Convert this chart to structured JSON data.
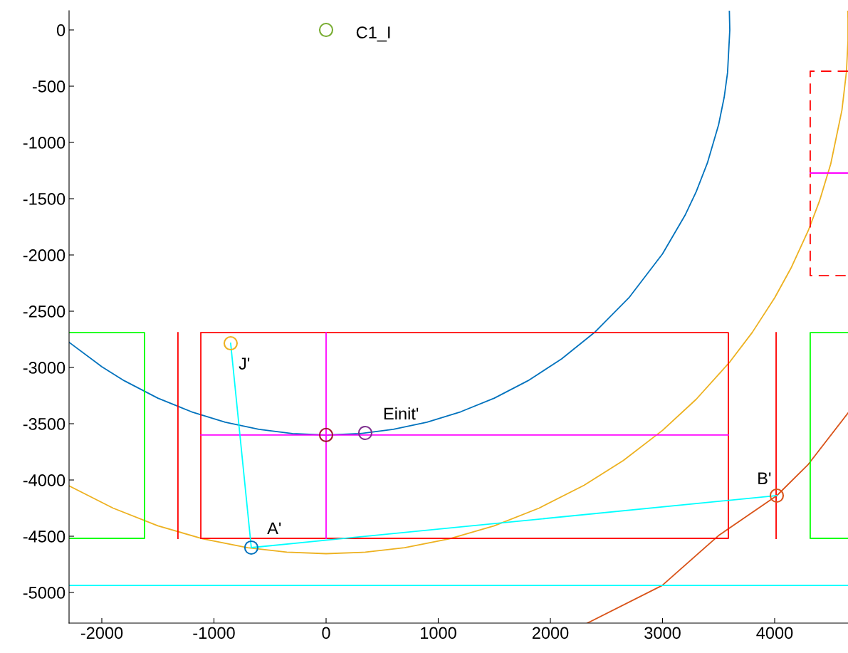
{
  "chart_data": {
    "type": "line",
    "xlim": [
      -2292,
      4654
    ],
    "ylim": [
      -5272,
      171
    ],
    "xticks": [
      -2000,
      -1000,
      0,
      1000,
      2000,
      3000,
      4000
    ],
    "yticks": [
      0,
      -500,
      -1000,
      -1500,
      -2000,
      -2500,
      -3000,
      -3500,
      -4000,
      -4500,
      -5000
    ],
    "grid": false,
    "legend": false,
    "series": [
      {
        "color": "#0072bd",
        "line_style": "solid",
        "x": [
          -2292,
          -2000,
          -1800,
          -1500,
          -1200,
          -900,
          -600,
          -300,
          0,
          300,
          600,
          900,
          1200,
          1500,
          1800,
          2100,
          2400,
          2700,
          3000,
          3200,
          3300,
          3400,
          3500,
          3550,
          3580,
          3600,
          3596
        ],
        "values": [
          -2776,
          -2993,
          -3118,
          -3273,
          -3394,
          -3486,
          -3550,
          -3588,
          -3600,
          -3588,
          -3550,
          -3486,
          -3394,
          -3273,
          -3118,
          -2924,
          -2683,
          -2381,
          -1990,
          -1649,
          -1439,
          -1183,
          -843,
          -598,
          -379,
          0,
          170
        ]
      },
      {
        "color": "#edb120",
        "line_style": "solid",
        "x": [
          -2292,
          -1900,
          -1500,
          -1100,
          -700,
          -350,
          0,
          350,
          700,
          1100,
          1500,
          1900,
          2300,
          2650,
          3000,
          3300,
          3600,
          3800,
          4000,
          4150,
          4300,
          4400,
          4500,
          4600,
          4640,
          4654,
          4654,
          4652
        ],
        "values": [
          -4052,
          -4250,
          -4407,
          -4523,
          -4602,
          -4642,
          -4655,
          -4642,
          -4602,
          -4523,
          -4407,
          -4250,
          -4047,
          -3827,
          -3559,
          -3283,
          -2951,
          -2689,
          -2381,
          -2109,
          -1783,
          -1520,
          -1191,
          -713,
          -373,
          -96,
          96,
          171
        ]
      },
      {
        "color": "#d95319",
        "line_style": "solid",
        "x": [
          2330,
          2997,
          3500,
          4019,
          4300,
          4654
        ],
        "values": [
          -5272,
          -4937,
          -4494,
          -4139,
          -3861,
          -3405
        ]
      },
      {
        "color": "#ff0000",
        "line_style": "solid",
        "x": [
          -1117,
          3587,
          3587,
          -1117,
          null,
          -1117,
          -1117,
          null,
          -1321,
          -1321,
          null,
          4013,
          4013
        ],
        "values": [
          -2690,
          -2690,
          -4519,
          -4519,
          null,
          -4519,
          -2690,
          null,
          -2690,
          -4519,
          null,
          -2690,
          -4519
        ]
      },
      {
        "color": "#ff00ff",
        "line_style": "solid",
        "x": [
          -1117,
          3587
        ],
        "values": [
          -3600,
          -3600
        ]
      },
      {
        "color": "#ff00ff",
        "line_style": "solid",
        "x": [
          0,
          0
        ],
        "values": [
          -2690,
          -4519
        ]
      },
      {
        "color": "#00ff00",
        "line_style": "solid",
        "x": [
          -2292,
          -1619,
          -1619,
          -2292
        ],
        "values": [
          -2690,
          -2690,
          -4519,
          -4519
        ]
      },
      {
        "color": "#00ff00",
        "line_style": "solid",
        "x": [
          4654,
          4317,
          4317,
          4654
        ],
        "values": [
          -2690,
          -2690,
          -4519,
          -4519
        ]
      },
      {
        "color": "#ff0000",
        "line_style": "dashed",
        "x": [
          4654,
          4317,
          4317,
          4654
        ],
        "values": [
          -367,
          -367,
          -2184,
          -2184
        ]
      },
      {
        "color": "#ff00ff",
        "line_style": "solid",
        "x": [
          4317,
          4654
        ],
        "values": [
          -1272,
          -1272
        ]
      },
      {
        "color": "#00ffff",
        "line_style": "solid",
        "x": [
          -2292,
          4654
        ],
        "values": [
          -4937,
          -4937
        ]
      },
      {
        "color": "#00ffff",
        "line_style": "solid",
        "x": [
          -851,
          -667,
          4019
        ],
        "values": [
          -2785,
          -4601,
          -4139
        ]
      },
      {
        "type": "scatter",
        "color": "#77ac30",
        "marker": "circle",
        "x": [
          0
        ],
        "values": [
          0
        ]
      },
      {
        "type": "scatter",
        "color": "#a2142f",
        "marker": "circle",
        "x": [
          0
        ],
        "values": [
          -3600
        ]
      },
      {
        "type": "scatter",
        "color": "#7e2f8e",
        "marker": "circle",
        "x": [
          349
        ],
        "values": [
          -3582
        ]
      },
      {
        "type": "scatter",
        "color": "#edb120",
        "marker": "circle",
        "x": [
          -851
        ],
        "values": [
          -2785
        ]
      },
      {
        "type": "scatter",
        "color": "#0072bd",
        "marker": "circle",
        "x": [
          -667
        ],
        "values": [
          -4601
        ]
      },
      {
        "type": "scatter",
        "color": "#d95319",
        "marker": "circle",
        "x": [
          4019
        ],
        "values": [
          -4139
        ]
      }
    ],
    "annotations": [
      {
        "text": "C1_I",
        "x": 0,
        "y": 0
      },
      {
        "text": "Einit'",
        "x": 349,
        "y": -3582
      },
      {
        "text": "J'",
        "x": -851,
        "y": -2785
      },
      {
        "text": "A'",
        "x": -667,
        "y": -4601
      },
      {
        "text": "B'",
        "x": 4019,
        "y": -4139
      }
    ]
  }
}
